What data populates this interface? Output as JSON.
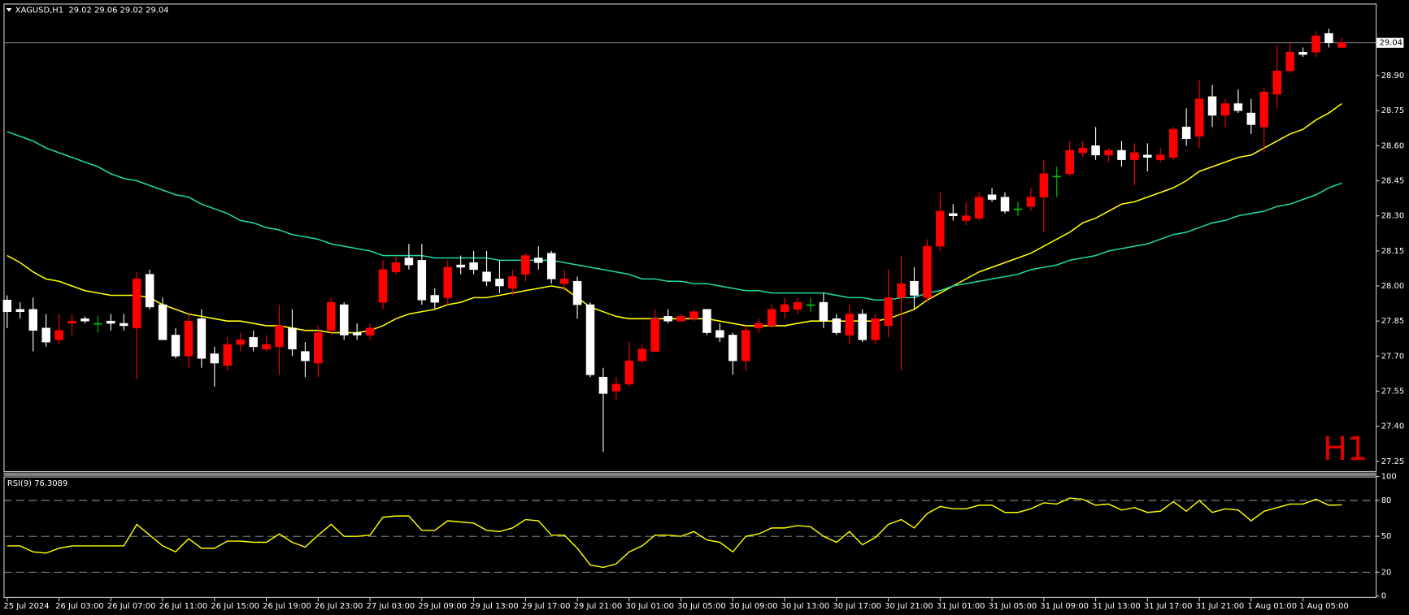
{
  "chart_data": [
    {
      "type": "candlestick",
      "title": "XAGUSD,H1  29.02 29.06 29.02 29.04",
      "annotation": "H1",
      "last_price": 29.04,
      "up_color": "#ff0000",
      "down_color": "#ffffff",
      "doji_color": "#00c800",
      "categories": [
        "25 Jul 2024",
        null,
        null,
        null,
        "26 Jul 03:00",
        null,
        null,
        null,
        "26 Jul 07:00",
        null,
        null,
        null,
        "26 Jul 11:00",
        null,
        null,
        null,
        "26 Jul 15:00",
        null,
        null,
        null,
        "26 Jul 19:00",
        null,
        null,
        null,
        "26 Jul 23:00",
        null,
        null,
        null,
        "27 Jul 03:00",
        null,
        null,
        null,
        "29 Jul 09:00",
        null,
        null,
        null,
        "29 Jul 13:00",
        null,
        null,
        null,
        "29 Jul 17:00",
        null,
        null,
        null,
        "29 Jul 21:00",
        null,
        null,
        null,
        "30 Jul 01:00",
        null,
        null,
        null,
        "30 Jul 05:00",
        null,
        null,
        null,
        "30 Jul 09:00",
        null,
        null,
        null,
        "30 Jul 13:00",
        null,
        null,
        null,
        "30 Jul 17:00",
        null,
        null,
        null,
        "30 Jul 21:00",
        null,
        null,
        null,
        "31 Jul 01:00",
        null,
        null,
        null,
        "31 Jul 05:00",
        null,
        null,
        null,
        "31 Jul 09:00",
        null,
        null,
        null,
        "31 Jul 13:00",
        null,
        null,
        null,
        "31 Jul 17:00",
        null,
        null,
        null,
        "31 Jul 21:00",
        null,
        null,
        null,
        "1 Aug 01:00",
        null,
        null,
        null,
        "1 Aug 05:00",
        null,
        null,
        null
      ],
      "open": [
        27.94,
        27.9,
        27.9,
        27.82,
        27.77,
        27.84,
        27.86,
        27.84,
        27.85,
        27.84,
        27.82,
        28.05,
        27.92,
        27.79,
        27.7,
        27.86,
        27.71,
        27.66,
        27.75,
        27.78,
        27.73,
        27.74,
        27.82,
        27.72,
        27.67,
        27.81,
        27.92,
        27.8,
        27.79,
        27.93,
        28.06,
        28.12,
        28.11,
        27.96,
        27.95,
        28.09,
        28.1,
        28.06,
        28.03,
        27.99,
        28.05,
        28.12,
        28.14,
        28.01,
        28.02,
        27.92,
        27.61,
        27.55,
        27.58,
        27.68,
        27.72,
        27.87,
        27.85,
        27.86,
        27.9,
        27.81,
        27.79,
        27.68,
        27.82,
        27.83,
        27.89,
        27.9,
        27.92,
        27.93,
        27.86,
        27.79,
        27.88,
        27.77,
        27.83,
        27.95,
        28.02,
        27.95,
        28.17,
        28.31,
        28.28,
        28.29,
        28.39,
        28.38,
        28.33,
        28.34,
        28.38,
        28.47,
        28.48,
        28.57,
        28.6,
        28.56,
        28.58,
        28.54,
        28.56,
        28.54,
        28.55,
        28.68,
        28.64,
        28.81,
        28.73,
        28.78,
        28.74,
        28.68,
        28.82,
        28.92,
        29.0,
        29.0,
        29.08,
        29.02
      ],
      "high": [
        27.96,
        27.93,
        27.95,
        27.88,
        27.88,
        27.88,
        27.87,
        27.87,
        27.88,
        27.88,
        28.06,
        28.07,
        27.95,
        27.82,
        27.88,
        27.9,
        27.74,
        27.78,
        27.8,
        27.81,
        27.79,
        27.92,
        27.9,
        27.76,
        27.83,
        27.95,
        27.93,
        27.84,
        27.84,
        28.11,
        28.13,
        28.18,
        28.18,
        27.99,
        28.11,
        28.13,
        28.15,
        28.15,
        28.11,
        28.07,
        28.14,
        28.17,
        28.15,
        28.07,
        28.04,
        27.93,
        27.65,
        27.61,
        27.76,
        27.75,
        27.9,
        27.9,
        27.88,
        27.9,
        27.9,
        27.84,
        27.8,
        27.83,
        27.86,
        27.92,
        27.95,
        27.95,
        27.95,
        27.97,
        27.88,
        27.92,
        27.9,
        27.88,
        28.07,
        28.13,
        28.08,
        28.2,
        28.4,
        28.35,
        28.36,
        28.4,
        28.42,
        28.4,
        28.36,
        28.42,
        28.54,
        28.51,
        28.62,
        28.62,
        28.68,
        28.59,
        28.62,
        28.61,
        28.61,
        28.59,
        28.68,
        28.76,
        28.88,
        28.86,
        28.8,
        28.84,
        28.8,
        28.85,
        29.03,
        29.04,
        29.02,
        29.09,
        29.1,
        29.06
      ],
      "low": [
        27.82,
        27.86,
        27.72,
        27.74,
        27.75,
        27.79,
        27.84,
        27.8,
        27.81,
        27.81,
        27.6,
        27.9,
        27.77,
        27.69,
        27.65,
        27.65,
        27.57,
        27.64,
        27.72,
        27.72,
        27.72,
        27.62,
        27.7,
        27.61,
        27.61,
        27.79,
        27.77,
        27.77,
        27.77,
        27.9,
        28.05,
        28.07,
        27.92,
        27.9,
        27.92,
        28.05,
        28.05,
        28.0,
        27.97,
        27.96,
        28.02,
        28.07,
        28.01,
        27.98,
        27.86,
        27.61,
        27.29,
        27.51,
        27.57,
        27.67,
        27.72,
        27.84,
        27.85,
        27.85,
        27.79,
        27.76,
        27.62,
        27.64,
        27.8,
        27.82,
        27.86,
        27.88,
        27.89,
        27.82,
        27.79,
        27.75,
        27.76,
        27.75,
        27.78,
        27.64,
        27.9,
        27.93,
        28.15,
        28.28,
        28.26,
        28.28,
        28.36,
        28.31,
        28.3,
        28.32,
        28.23,
        28.38,
        28.47,
        28.55,
        28.54,
        28.53,
        28.51,
        28.43,
        28.49,
        28.53,
        28.54,
        28.6,
        28.59,
        28.68,
        28.68,
        28.74,
        28.65,
        28.57,
        28.76,
        28.91,
        28.98,
        28.98,
        29.02,
        29.02
      ],
      "close": [
        27.89,
        27.89,
        27.81,
        27.76,
        27.81,
        27.85,
        27.85,
        27.84,
        27.84,
        27.83,
        28.03,
        27.91,
        27.77,
        27.7,
        27.85,
        27.69,
        27.67,
        27.75,
        27.77,
        27.74,
        27.75,
        27.83,
        27.73,
        27.68,
        27.8,
        27.93,
        27.79,
        27.79,
        27.82,
        28.07,
        28.1,
        28.09,
        27.94,
        27.93,
        28.08,
        28.08,
        28.07,
        28.02,
        28.0,
        28.04,
        28.13,
        28.1,
        28.03,
        28.03,
        27.92,
        27.62,
        27.54,
        27.58,
        27.68,
        27.73,
        27.86,
        27.85,
        27.87,
        27.89,
        27.8,
        27.78,
        27.68,
        27.81,
        27.84,
        27.9,
        27.92,
        27.93,
        27.92,
        27.85,
        27.8,
        27.88,
        27.77,
        27.86,
        27.95,
        28.01,
        27.96,
        28.17,
        28.32,
        28.3,
        28.3,
        28.38,
        28.37,
        28.32,
        28.33,
        28.38,
        28.48,
        28.47,
        28.58,
        28.59,
        28.56,
        28.58,
        28.54,
        28.57,
        28.55,
        28.56,
        28.67,
        28.63,
        28.8,
        28.73,
        28.78,
        28.75,
        28.69,
        28.83,
        28.92,
        29.0,
        28.99,
        29.07,
        29.04,
        29.04
      ],
      "series": [
        {
          "color": "#ffff00",
          "values": [
            28.13,
            28.1,
            28.06,
            28.03,
            28.02,
            28.0,
            27.98,
            27.97,
            27.96,
            27.96,
            27.96,
            27.95,
            27.92,
            27.9,
            27.88,
            27.87,
            27.86,
            27.85,
            27.85,
            27.84,
            27.83,
            27.83,
            27.82,
            27.81,
            27.81,
            27.8,
            27.8,
            27.8,
            27.81,
            27.83,
            27.86,
            27.88,
            27.89,
            27.9,
            27.92,
            27.93,
            27.95,
            27.95,
            27.96,
            27.97,
            27.98,
            27.99,
            28.0,
            27.99,
            27.95,
            27.91,
            27.89,
            27.87,
            27.86,
            27.86,
            27.86,
            27.86,
            27.86,
            27.86,
            27.86,
            27.85,
            27.84,
            27.83,
            27.83,
            27.83,
            27.83,
            27.84,
            27.85,
            27.85,
            27.85,
            27.85,
            27.85,
            27.85,
            27.86,
            27.88,
            27.9,
            27.94,
            27.97,
            28.0,
            28.03,
            28.06,
            28.08,
            28.1,
            28.12,
            28.14,
            28.17,
            28.2,
            28.23,
            28.27,
            28.29,
            28.32,
            28.35,
            28.36,
            28.38,
            28.4,
            28.42,
            28.45,
            28.49,
            28.51,
            28.53,
            28.55,
            28.56,
            28.59,
            28.62,
            28.65,
            28.67,
            28.71,
            28.74,
            28.78
          ]
        },
        {
          "color": "#1fd8a8",
          "values": [
            28.66,
            28.64,
            28.62,
            28.59,
            28.57,
            28.55,
            28.53,
            28.51,
            28.48,
            28.46,
            28.45,
            28.43,
            28.41,
            28.39,
            28.38,
            28.35,
            28.33,
            28.31,
            28.28,
            28.27,
            28.25,
            28.24,
            28.22,
            28.21,
            28.2,
            28.18,
            28.17,
            28.16,
            28.15,
            28.13,
            28.13,
            28.13,
            28.13,
            28.12,
            28.12,
            28.12,
            28.12,
            28.12,
            28.11,
            28.11,
            28.11,
            28.11,
            28.11,
            28.1,
            28.09,
            28.08,
            28.07,
            28.06,
            28.05,
            28.03,
            28.03,
            28.02,
            28.02,
            28.01,
            28.01,
            28.0,
            27.99,
            27.98,
            27.98,
            27.97,
            27.97,
            27.97,
            27.97,
            27.97,
            27.96,
            27.95,
            27.95,
            27.94,
            27.94,
            27.95,
            27.95,
            27.97,
            27.98,
            28.0,
            28.01,
            28.02,
            28.03,
            28.04,
            28.05,
            28.07,
            28.08,
            28.09,
            28.11,
            28.12,
            28.13,
            28.15,
            28.16,
            28.17,
            28.18,
            28.2,
            28.22,
            28.23,
            28.25,
            28.27,
            28.28,
            28.3,
            28.31,
            28.32,
            28.34,
            28.35,
            28.37,
            28.39,
            28.42,
            28.44
          ]
        }
      ],
      "ylim": [
        27.208,
        29.204
      ],
      "yticks": [
        {
          "value": 28.9,
          "label": "28.90"
        },
        28.75,
        {
          "value": 28.6,
          "label": "28.60"
        },
        28.45,
        {
          "value": 28.3,
          "label": "28.30"
        },
        28.15,
        {
          "value": 28,
          "label": "28.00"
        },
        27.85,
        {
          "value": 27.7,
          "label": "27.70"
        },
        27.55,
        {
          "value": 27.4,
          "label": "27.40"
        },
        27.25
      ]
    },
    {
      "type": "line",
      "title": "RSI(9) 76.3089",
      "series": [
        {
          "color": "#ffff00",
          "values": [
            42,
            42,
            37,
            36,
            40,
            42,
            42,
            42,
            42,
            42,
            60,
            51,
            42,
            37,
            48,
            40,
            40,
            46,
            46,
            45,
            45,
            52,
            45,
            41,
            51,
            60,
            50,
            50,
            51,
            66,
            67,
            67,
            55,
            55,
            63,
            62,
            61,
            55,
            54,
            57,
            64,
            63,
            51,
            51,
            40,
            26,
            24,
            27,
            37,
            42,
            51,
            51,
            50,
            54,
            47,
            45,
            37,
            50,
            52,
            57,
            57,
            59,
            58,
            50,
            45,
            54,
            43,
            49,
            60,
            64,
            57,
            69,
            75,
            73,
            73,
            76,
            76,
            70,
            70,
            73,
            78,
            77,
            82,
            81,
            76,
            77,
            72,
            74,
            70,
            71,
            79,
            71,
            80,
            70,
            73,
            72,
            63,
            71,
            74,
            77,
            77,
            81,
            76,
            76.3089
          ]
        }
      ],
      "ylim": [
        0,
        100
      ],
      "yticks": [
        100,
        80,
        50,
        20,
        0
      ],
      "levels": [
        80,
        50,
        20
      ]
    }
  ]
}
